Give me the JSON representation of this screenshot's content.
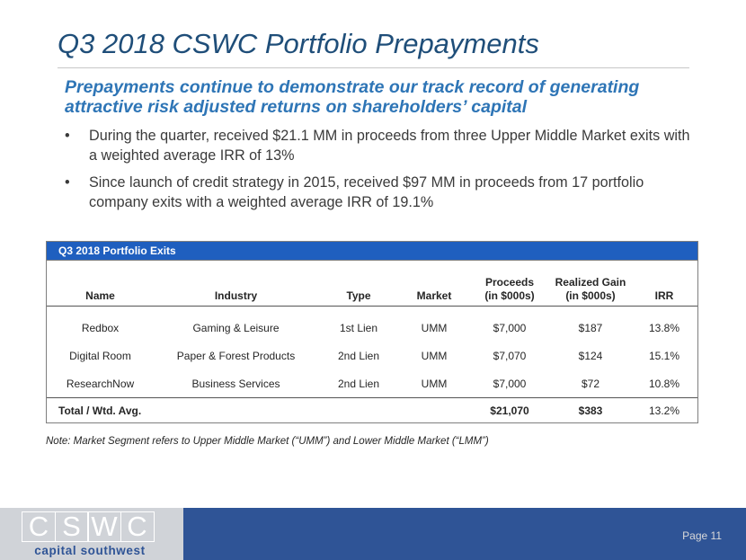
{
  "slide": {
    "title": "Q3 2018 CSWC Portfolio Prepayments",
    "subtitle_line1": "Prepayments continue to demonstrate our track record of generating",
    "subtitle_line2": "attractive risk adjusted returns on shareholders’ capital",
    "bullet_glyph": "•",
    "bullets": [
      "During the quarter, received $21.1 MM in proceeds from three Upper Middle Market exits with a weighted average IRR of 13%",
      "Since launch of credit strategy in 2015, received $97 MM in proceeds from 17 portfolio company exits with a weighted average IRR of 19.1%"
    ]
  },
  "table": {
    "title": "Q3 2018 Portfolio Exits",
    "columns": {
      "name": "Name",
      "industry": "Industry",
      "type": "Type",
      "market": "Market",
      "proceeds_l1": "Proceeds",
      "proceeds_l2": "(in $000s)",
      "gain_l1": "Realized Gain",
      "gain_l2": "(in $000s)",
      "irr": "IRR"
    },
    "rows": [
      {
        "name": "Redbox",
        "industry": "Gaming & Leisure",
        "type": "1st Lien",
        "market": "UMM",
        "proceeds": "$7,000",
        "gain": "$187",
        "irr": "13.8%"
      },
      {
        "name": "Digital Room",
        "industry": "Paper & Forest Products",
        "type": "2nd Lien",
        "market": "UMM",
        "proceeds": "$7,070",
        "gain": "$124",
        "irr": "15.1%"
      },
      {
        "name": "ResearchNow",
        "industry": "Business Services",
        "type": "2nd Lien",
        "market": "UMM",
        "proceeds": "$7,000",
        "gain": "$72",
        "irr": "10.8%"
      }
    ],
    "total": {
      "label": "Total / Wtd. Avg.",
      "proceeds": "$21,070",
      "gain": "$383",
      "irr": "13.2%"
    }
  },
  "note": "Note:  Market Segment refers to Upper Middle Market (“UMM”) and Lower Middle Market (“LMM”)",
  "footer": {
    "logo_letters": [
      "C",
      "S",
      "W",
      "C"
    ],
    "logo_tagline": "capital southwest",
    "page_label": "Page 11"
  },
  "colors": {
    "title": "#1f4e79",
    "subtitle": "#2e75b6",
    "table_header": "#1f5fbf",
    "footer_band": "#2f5496",
    "footer_logo_bg": "#d0d3d8"
  }
}
